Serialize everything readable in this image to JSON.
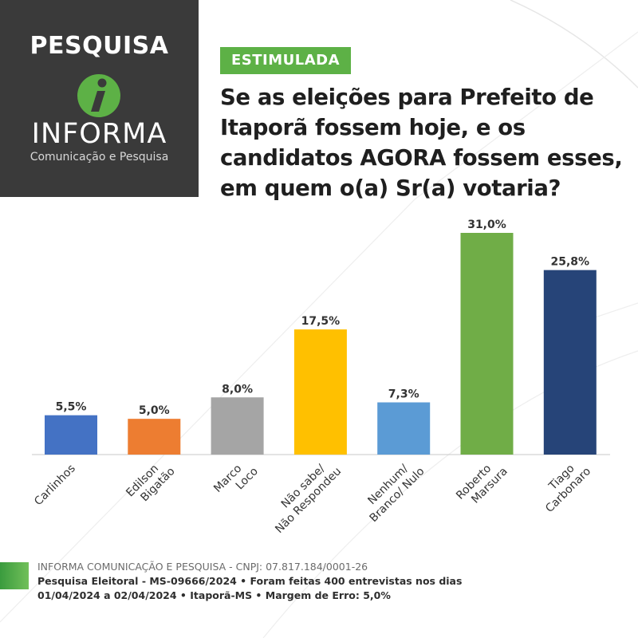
{
  "brand": {
    "pesquisa": "PESQUISA",
    "name": "INFORMA",
    "tagline": "Comunicação e Pesquisa",
    "logo_icon": "informa-i-logo",
    "logo_color": "#5db146"
  },
  "badge": {
    "label": "ESTIMULADA",
    "color": "#5db146"
  },
  "question": "Se as eleições para Prefeito de Itaporã fossem hoje, e os candidatos AGORA fossem esses, em quem o(a) Sr(a) votaria?",
  "chart_data": {
    "type": "bar",
    "title": "",
    "xlabel": "",
    "ylabel": "",
    "categories": [
      [
        "Carlinhos"
      ],
      [
        "Edilson",
        "Bigatão"
      ],
      [
        "Marco",
        "Loco"
      ],
      [
        "Não sabe/",
        "Não Respondeu"
      ],
      [
        "Nenhum/",
        "Branco/ Nulo"
      ],
      [
        "Roberto",
        "Marsura"
      ],
      [
        "Tiago",
        "Carbonaro"
      ]
    ],
    "values": [
      5.5,
      5.0,
      8.0,
      17.5,
      7.3,
      31.0,
      25.8
    ],
    "value_labels": [
      "5,5%",
      "5,0%",
      "8,0%",
      "17,5%",
      "7,3%",
      "31,0%",
      "25,8%"
    ],
    "colors": [
      "#4472c4",
      "#ed7d31",
      "#a5a5a5",
      "#ffc000",
      "#5b9bd5",
      "#70ad47",
      "#264478"
    ],
    "ylim": [
      0,
      31
    ],
    "grid": false,
    "legend": "none"
  },
  "footer": {
    "line1": "INFORMA COMUNICAÇÃO E PESQUISA - CNPJ: 07.817.184/0001-26",
    "line2": "Pesquisa Eleitoral - MS-09666/2024 • Foram feitas 400 entrevistas nos dias",
    "line3": "01/04/2024 a 02/04/2024 • Itaporã-MS • Margem de Erro: 5,0%"
  }
}
